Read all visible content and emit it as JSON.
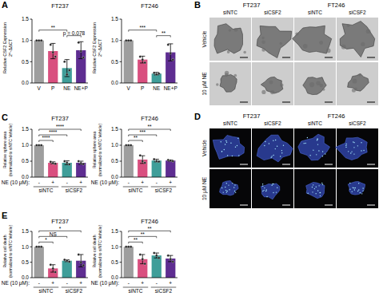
{
  "panel_labels": [
    "A",
    "B",
    "C",
    "D",
    "E"
  ],
  "chart_data": [
    {
      "type": "bar",
      "title": "FT237",
      "y_label": [
        "Relative CSF2 Expression",
        "2^-ΔΔCT"
      ],
      "categories": [
        "V",
        "P",
        "NE",
        "NE+P"
      ],
      "values": [
        1,
        0.75,
        0.35,
        0.77
      ],
      "errors": [
        0,
        0.18,
        0.2,
        0.2
      ],
      "points": [
        [
          1,
          1,
          1
        ],
        [
          0.9,
          0.72,
          0.62
        ],
        [
          0.5,
          0.2,
          0.3
        ],
        [
          0.95,
          0.75,
          0.6
        ]
      ],
      "colors": [
        "#9e9e9e",
        "#d94f7f",
        "#3f9e99",
        "#5e2d91"
      ],
      "ylim": [
        0,
        1.5
      ],
      "yticks": [
        {
          "value": 0,
          "label": "0.0"
        },
        0.5,
        {
          "value": 1,
          "label": "1.0"
        },
        1.5
      ],
      "annotations": [
        {
          "text": "p = 0.078",
          "from": 2,
          "to": 3
        },
        {
          "text": "**",
          "from": 0,
          "to": 2
        }
      ]
    },
    {
      "type": "bar",
      "title": "FT246",
      "y_label": [
        "Relative CSF2 Expression",
        "2^-ΔΔCT"
      ],
      "categories": [
        "V",
        "P",
        "NE",
        "NE+P"
      ],
      "values": [
        1,
        0.55,
        0.22,
        0.72
      ],
      "errors": [
        0,
        0.08,
        0.03,
        0.2
      ],
      "points": [
        [
          1,
          1,
          1
        ],
        [
          0.62,
          0.55,
          0.48
        ],
        [
          0.24,
          0.2,
          0.22
        ],
        [
          0.9,
          0.7,
          0.55
        ]
      ],
      "colors": [
        "#9e9e9e",
        "#d94f7f",
        "#3f9e99",
        "#5e2d91"
      ],
      "ylim": [
        0,
        1.5
      ],
      "yticks": [
        {
          "value": 0,
          "label": "0.0"
        },
        0.5,
        {
          "value": 1,
          "label": "1.0"
        },
        1.5
      ],
      "annotations": [
        {
          "text": "**",
          "from": 2,
          "to": 3
        },
        {
          "text": "***",
          "from": 0,
          "to": 2
        }
      ]
    },
    {
      "type": "bar",
      "title": "FT237",
      "y_label": [
        "Relative sphere area",
        "(normalized to siNTC Vehicle)"
      ],
      "x_label": "NE (10 μM):",
      "categories": [
        "-",
        "+",
        "-",
        "+"
      ],
      "groups": [
        {
          "label": "siNTC",
          "from": 0,
          "to": 1
        },
        {
          "label": "siCSF2",
          "from": 2,
          "to": 3
        }
      ],
      "values": [
        1,
        0.45,
        0.45,
        0.45
      ],
      "errors": [
        0,
        0.03,
        0.06,
        0.05
      ],
      "points": [
        [
          1,
          1,
          1
        ],
        [
          0.48,
          0.44,
          0.42
        ],
        [
          0.5,
          0.45,
          0.4
        ],
        [
          0.5,
          0.44,
          0.41
        ]
      ],
      "colors": [
        "#9e9e9e",
        "#d94f7f",
        "#3f9e99",
        "#5e2d91"
      ],
      "ylim": [
        0,
        1.5
      ],
      "yticks": [
        {
          "value": 0,
          "label": "0.0"
        },
        0.5,
        {
          "value": 1,
          "label": "1.0"
        },
        1.5
      ],
      "annotations": [
        {
          "text": "****",
          "from": 0,
          "to": 1
        },
        {
          "text": "****",
          "from": 0,
          "to": 2
        },
        {
          "text": "****",
          "from": 0,
          "to": 3
        }
      ]
    },
    {
      "type": "bar",
      "title": "FT246",
      "y_label": [
        "Relative sphere area",
        "(normalized to siNTC Vehicle)"
      ],
      "x_label": "NE (10 μM):",
      "categories": [
        "-",
        "+",
        "-",
        "+"
      ],
      "groups": [
        {
          "label": "siNTC",
          "from": 0,
          "to": 1
        },
        {
          "label": "siCSF2",
          "from": 2,
          "to": 3
        }
      ],
      "values": [
        1,
        0.55,
        0.52,
        0.52
      ],
      "errors": [
        0,
        0.12,
        0.04,
        0.02
      ],
      "points": [
        [
          1,
          1,
          1
        ],
        [
          0.68,
          0.5,
          0.45
        ],
        [
          0.56,
          0.5,
          0.49
        ],
        [
          0.54,
          0.52,
          0.5
        ]
      ],
      "colors": [
        "#9e9e9e",
        "#d94f7f",
        "#3f9e99",
        "#5e2d91"
      ],
      "ylim": [
        0,
        1.5
      ],
      "yticks": [
        {
          "value": 0,
          "label": "0.0"
        },
        0.5,
        {
          "value": 1,
          "label": "1.0"
        },
        1.5
      ],
      "annotations": [
        {
          "text": "**",
          "from": 0,
          "to": 1
        },
        {
          "text": "***",
          "from": 0,
          "to": 2
        },
        {
          "text": "**",
          "from": 0,
          "to": 3
        }
      ]
    },
    {
      "type": "bar",
      "title": "FT237",
      "y_label": [
        "Relative cell death",
        "(normalized to siNTC Vehicle)"
      ],
      "x_label": "NE (10 μM):",
      "categories": [
        "-",
        "+",
        "-",
        "+"
      ],
      "groups": [
        {
          "label": "siNTC",
          "from": 0,
          "to": 1
        },
        {
          "label": "siCSF2",
          "from": 2,
          "to": 3
        }
      ],
      "values": [
        1,
        0.3,
        0.55,
        0.55
      ],
      "errors": [
        0,
        0.12,
        0.03,
        0.2
      ],
      "points": [
        [
          1,
          1,
          1
        ],
        [
          0.42,
          0.3,
          0.18
        ],
        [
          0.58,
          0.55,
          0.52
        ],
        [
          0.75,
          0.5,
          0.4
        ]
      ],
      "colors": [
        "#9e9e9e",
        "#d94f7f",
        "#3f9e99",
        "#5e2d91"
      ],
      "ylim": [
        0,
        1.5
      ],
      "yticks": [
        {
          "value": 0,
          "label": "0.0"
        },
        0.5,
        {
          "value": 1,
          "label": "1.0"
        },
        1.5
      ],
      "annotations": [
        {
          "text": "*",
          "from": 0,
          "to": 1
        },
        {
          "text": "NS",
          "from": 0,
          "to": 2
        },
        {
          "text": "*",
          "from": 0,
          "to": 3
        }
      ]
    },
    {
      "type": "bar",
      "title": "FT246",
      "y_label": [
        "Relative cell death",
        "(normalized to siNTC Vehicle)"
      ],
      "x_label": "NE (10 μM):",
      "categories": [
        "-",
        "+",
        "-",
        "+"
      ],
      "groups": [
        {
          "label": "siNTC",
          "from": 0,
          "to": 1
        },
        {
          "label": "siCSF2",
          "from": 2,
          "to": 3
        }
      ],
      "values": [
        1,
        0.6,
        0.72,
        0.62
      ],
      "errors": [
        0,
        0.15,
        0.08,
        0.1
      ],
      "points": [
        [
          1,
          1,
          1
        ],
        [
          0.75,
          0.6,
          0.45
        ],
        [
          0.8,
          0.72,
          0.64
        ],
        [
          0.72,
          0.6,
          0.52
        ]
      ],
      "colors": [
        "#9e9e9e",
        "#d94f7f",
        "#3f9e99",
        "#5e2d91"
      ],
      "ylim": [
        0,
        1.5
      ],
      "yticks": [
        {
          "value": 0,
          "label": "0.0"
        },
        0.5,
        {
          "value": 1,
          "label": "1.0"
        },
        1.5
      ],
      "annotations": [
        {
          "text": "**",
          "from": 0,
          "to": 1
        },
        {
          "text": "**",
          "from": 0,
          "to": 2
        },
        {
          "text": "**",
          "from": 0,
          "to": 3
        }
      ]
    }
  ],
  "image_panels": [
    {
      "type": "brightfield",
      "cell_lines": [
        "FT237",
        "FT246"
      ],
      "conditions": [
        "siNTC",
        "siCSF2"
      ],
      "rows": [
        "Vehicle",
        "10 μM NE"
      ]
    },
    {
      "type": "fluorescence",
      "cell_lines": [
        "FT237",
        "FT246"
      ],
      "conditions": [
        "siNTC",
        "siCSF2"
      ],
      "rows": [
        "Vehicle",
        "10 μM NE"
      ]
    }
  ]
}
